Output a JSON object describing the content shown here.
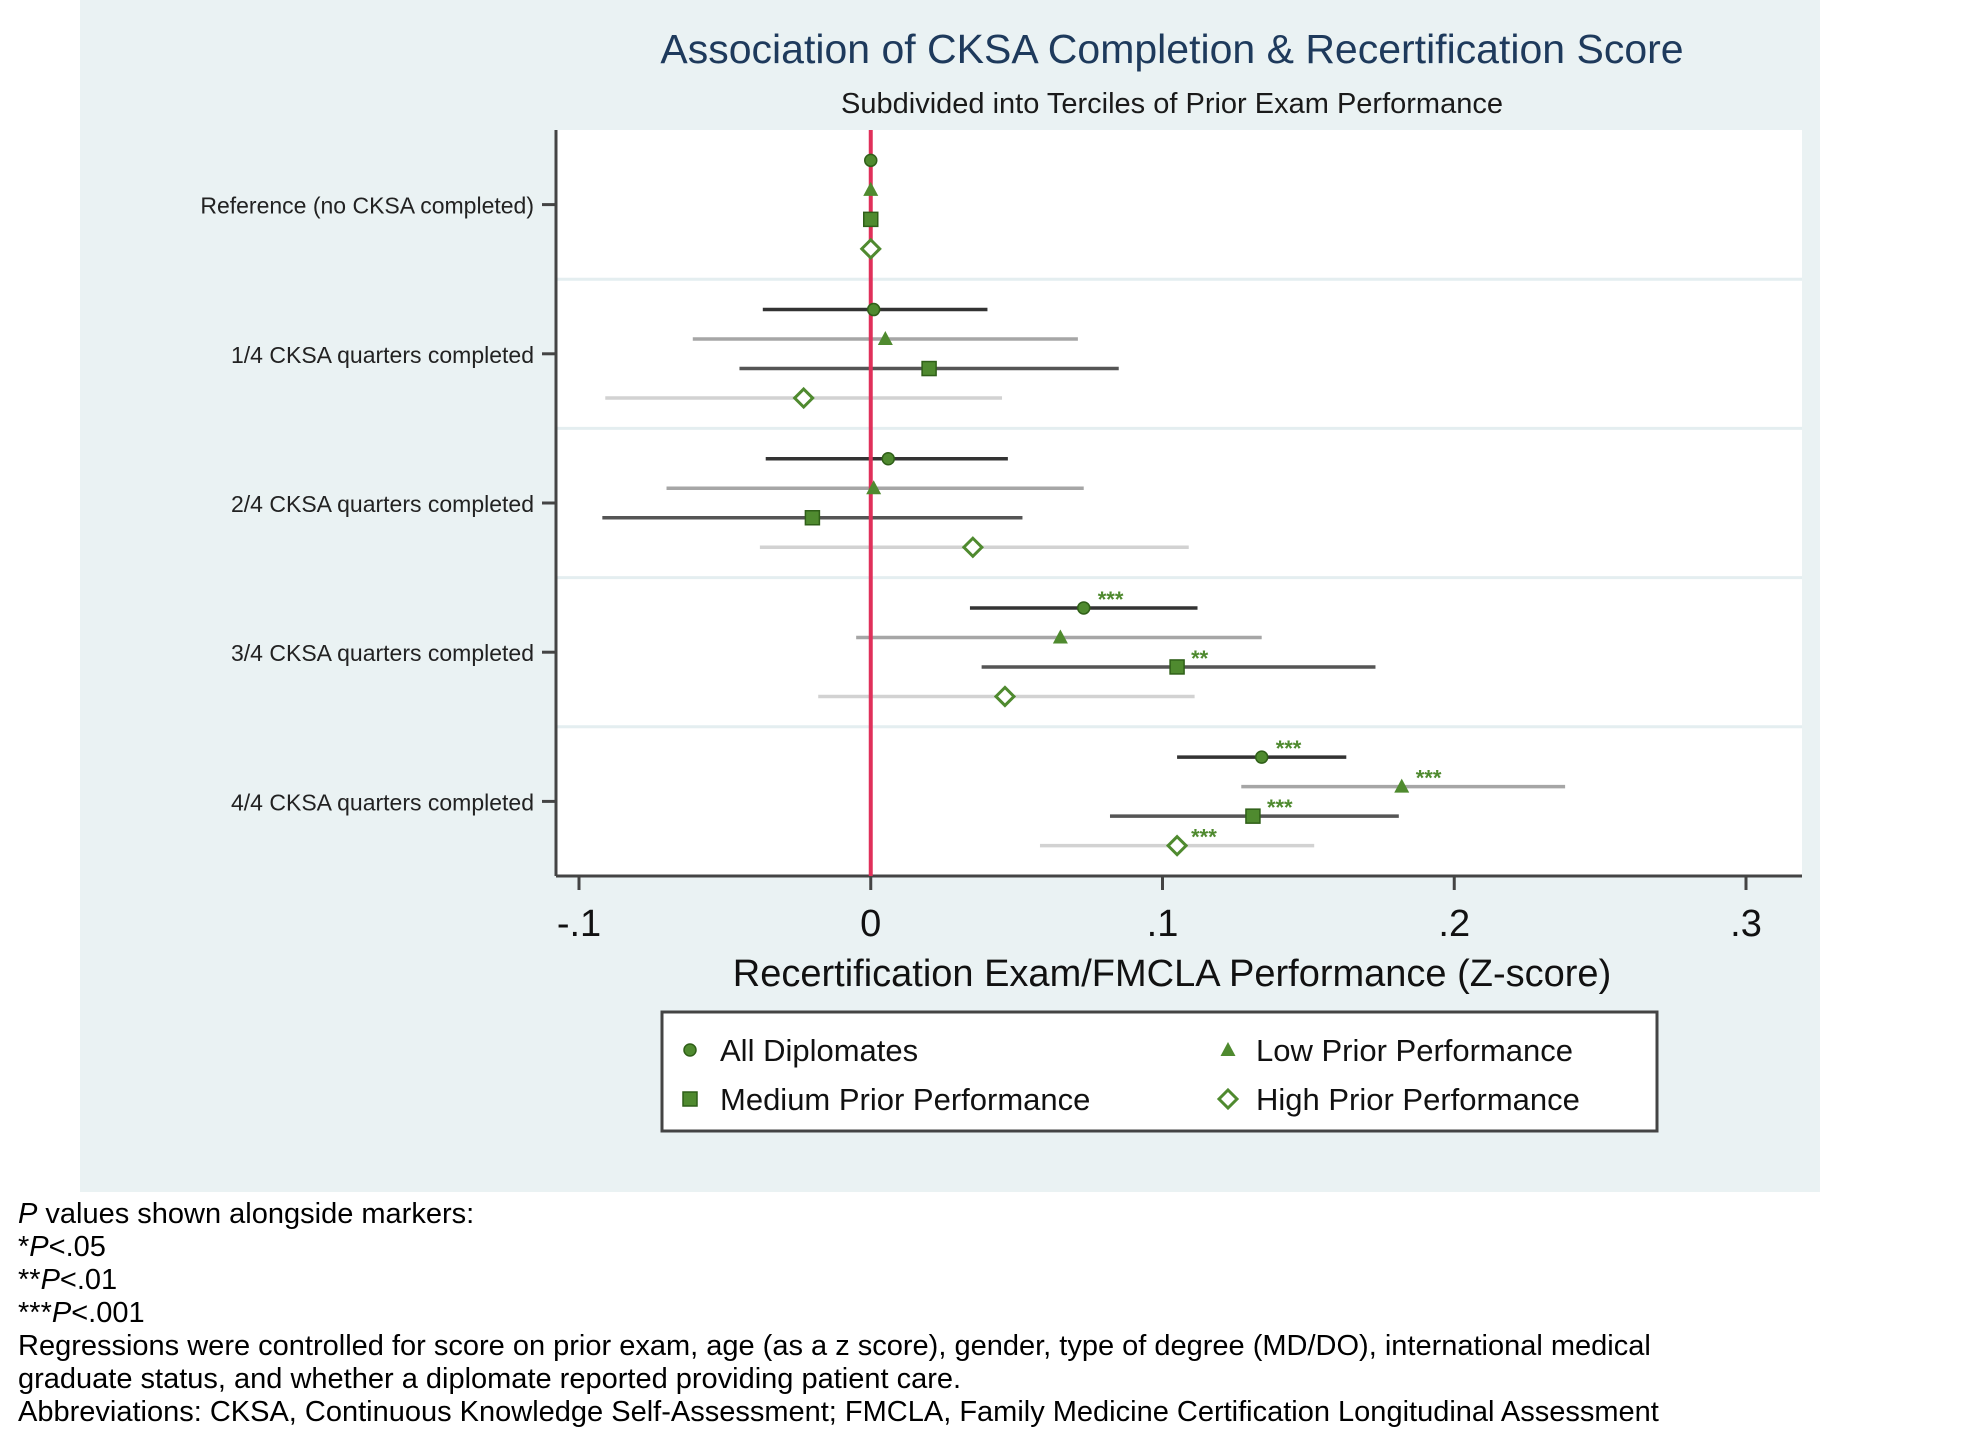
{
  "chart_data": {
    "type": "scatter",
    "subtype": "forest-plot",
    "title": "Association of CKSA Completion & Recertification Score",
    "subtitle": "Subdivided into Terciles of Prior Exam Performance",
    "xlabel": "Recertification Exam/FMCLA Performance (Z-score)",
    "xlim": [
      -0.1,
      0.3
    ],
    "xticks": [
      -0.1,
      0,
      0.1,
      0.2,
      0.3
    ],
    "xtick_labels": [
      "-.1",
      "0",
      ".1",
      ".2",
      ".3"
    ],
    "reference_line_x": 0,
    "reference_line_color": "#e0305a",
    "categories": [
      "Reference (no CKSA completed)",
      "1/4 CKSA quarters completed",
      "2/4 CKSA quarters completed",
      "3/4 CKSA quarters completed",
      "4/4 CKSA quarters completed"
    ],
    "series": [
      {
        "name": "All Diplomates",
        "marker": "circle",
        "ci_color": "#333333",
        "estimates": [
          0,
          0.001,
          0.006,
          0.073,
          0.134
        ],
        "ci_low": [
          0,
          -0.037,
          -0.036,
          0.034,
          0.105
        ],
        "ci_high": [
          0,
          0.04,
          0.047,
          0.112,
          0.163
        ],
        "significance": [
          "",
          "",
          "",
          "***",
          "***"
        ]
      },
      {
        "name": "Low Prior Performance",
        "marker": "triangle",
        "ci_color": "#a6a6a6",
        "estimates": [
          0,
          0.005,
          0.001,
          0.065,
          0.182
        ],
        "ci_low": [
          0,
          -0.061,
          -0.07,
          -0.005,
          0.127
        ],
        "ci_high": [
          0,
          0.071,
          0.073,
          0.134,
          0.238
        ],
        "significance": [
          "",
          "",
          "",
          "",
          "***"
        ]
      },
      {
        "name": "Medium Prior Performance",
        "marker": "square",
        "ci_color": "#555555",
        "estimates": [
          0,
          0.02,
          -0.02,
          0.105,
          0.131
        ],
        "ci_low": [
          0,
          -0.045,
          -0.092,
          0.038,
          0.082
        ],
        "ci_high": [
          0,
          0.085,
          0.052,
          0.173,
          0.181
        ],
        "significance": [
          "",
          "",
          "",
          "**",
          "***"
        ]
      },
      {
        "name": "High Prior Performance",
        "marker": "diamond",
        "ci_color": "#d2d2d2",
        "estimates": [
          0,
          -0.023,
          0.035,
          0.046,
          0.105
        ],
        "ci_low": [
          0,
          -0.091,
          -0.038,
          -0.018,
          0.058
        ],
        "ci_high": [
          0,
          0.045,
          0.109,
          0.111,
          0.152
        ],
        "significance": [
          "",
          "",
          "",
          "",
          "***"
        ]
      }
    ],
    "legend": {
      "placement": "bottom",
      "columns": 2,
      "order": [
        "All Diplomates",
        "Low Prior Performance",
        "Medium Prior Performance",
        "High Prior Performance"
      ]
    },
    "grid": "horizontal separators between categories",
    "marker_color": "#4f8a2f"
  },
  "notes": {
    "p_values_intro_italic": "P",
    "p_values_intro_rest": " values shown alongside markers:",
    "p05_stars": "*",
    "p05_italic": "P",
    "p05_rest": "<.05",
    "p01_stars": "**",
    "p01_italic": "P",
    "p01_rest": "<.01",
    "p001_stars": "***",
    "p001_italic": "P",
    "p001_rest": "<.001",
    "regressions_line1": "Regressions were controlled for score on prior exam, age (as a z score), gender, type of degree (MD/DO), international medical",
    "regressions_line2": "graduate status, and whether a diplomate reported providing patient care.",
    "abbreviations": "Abbreviations: CKSA, Continuous Knowledge Self-Assessment; FMCLA, Family Medicine Certification Longitudinal Assessment"
  }
}
